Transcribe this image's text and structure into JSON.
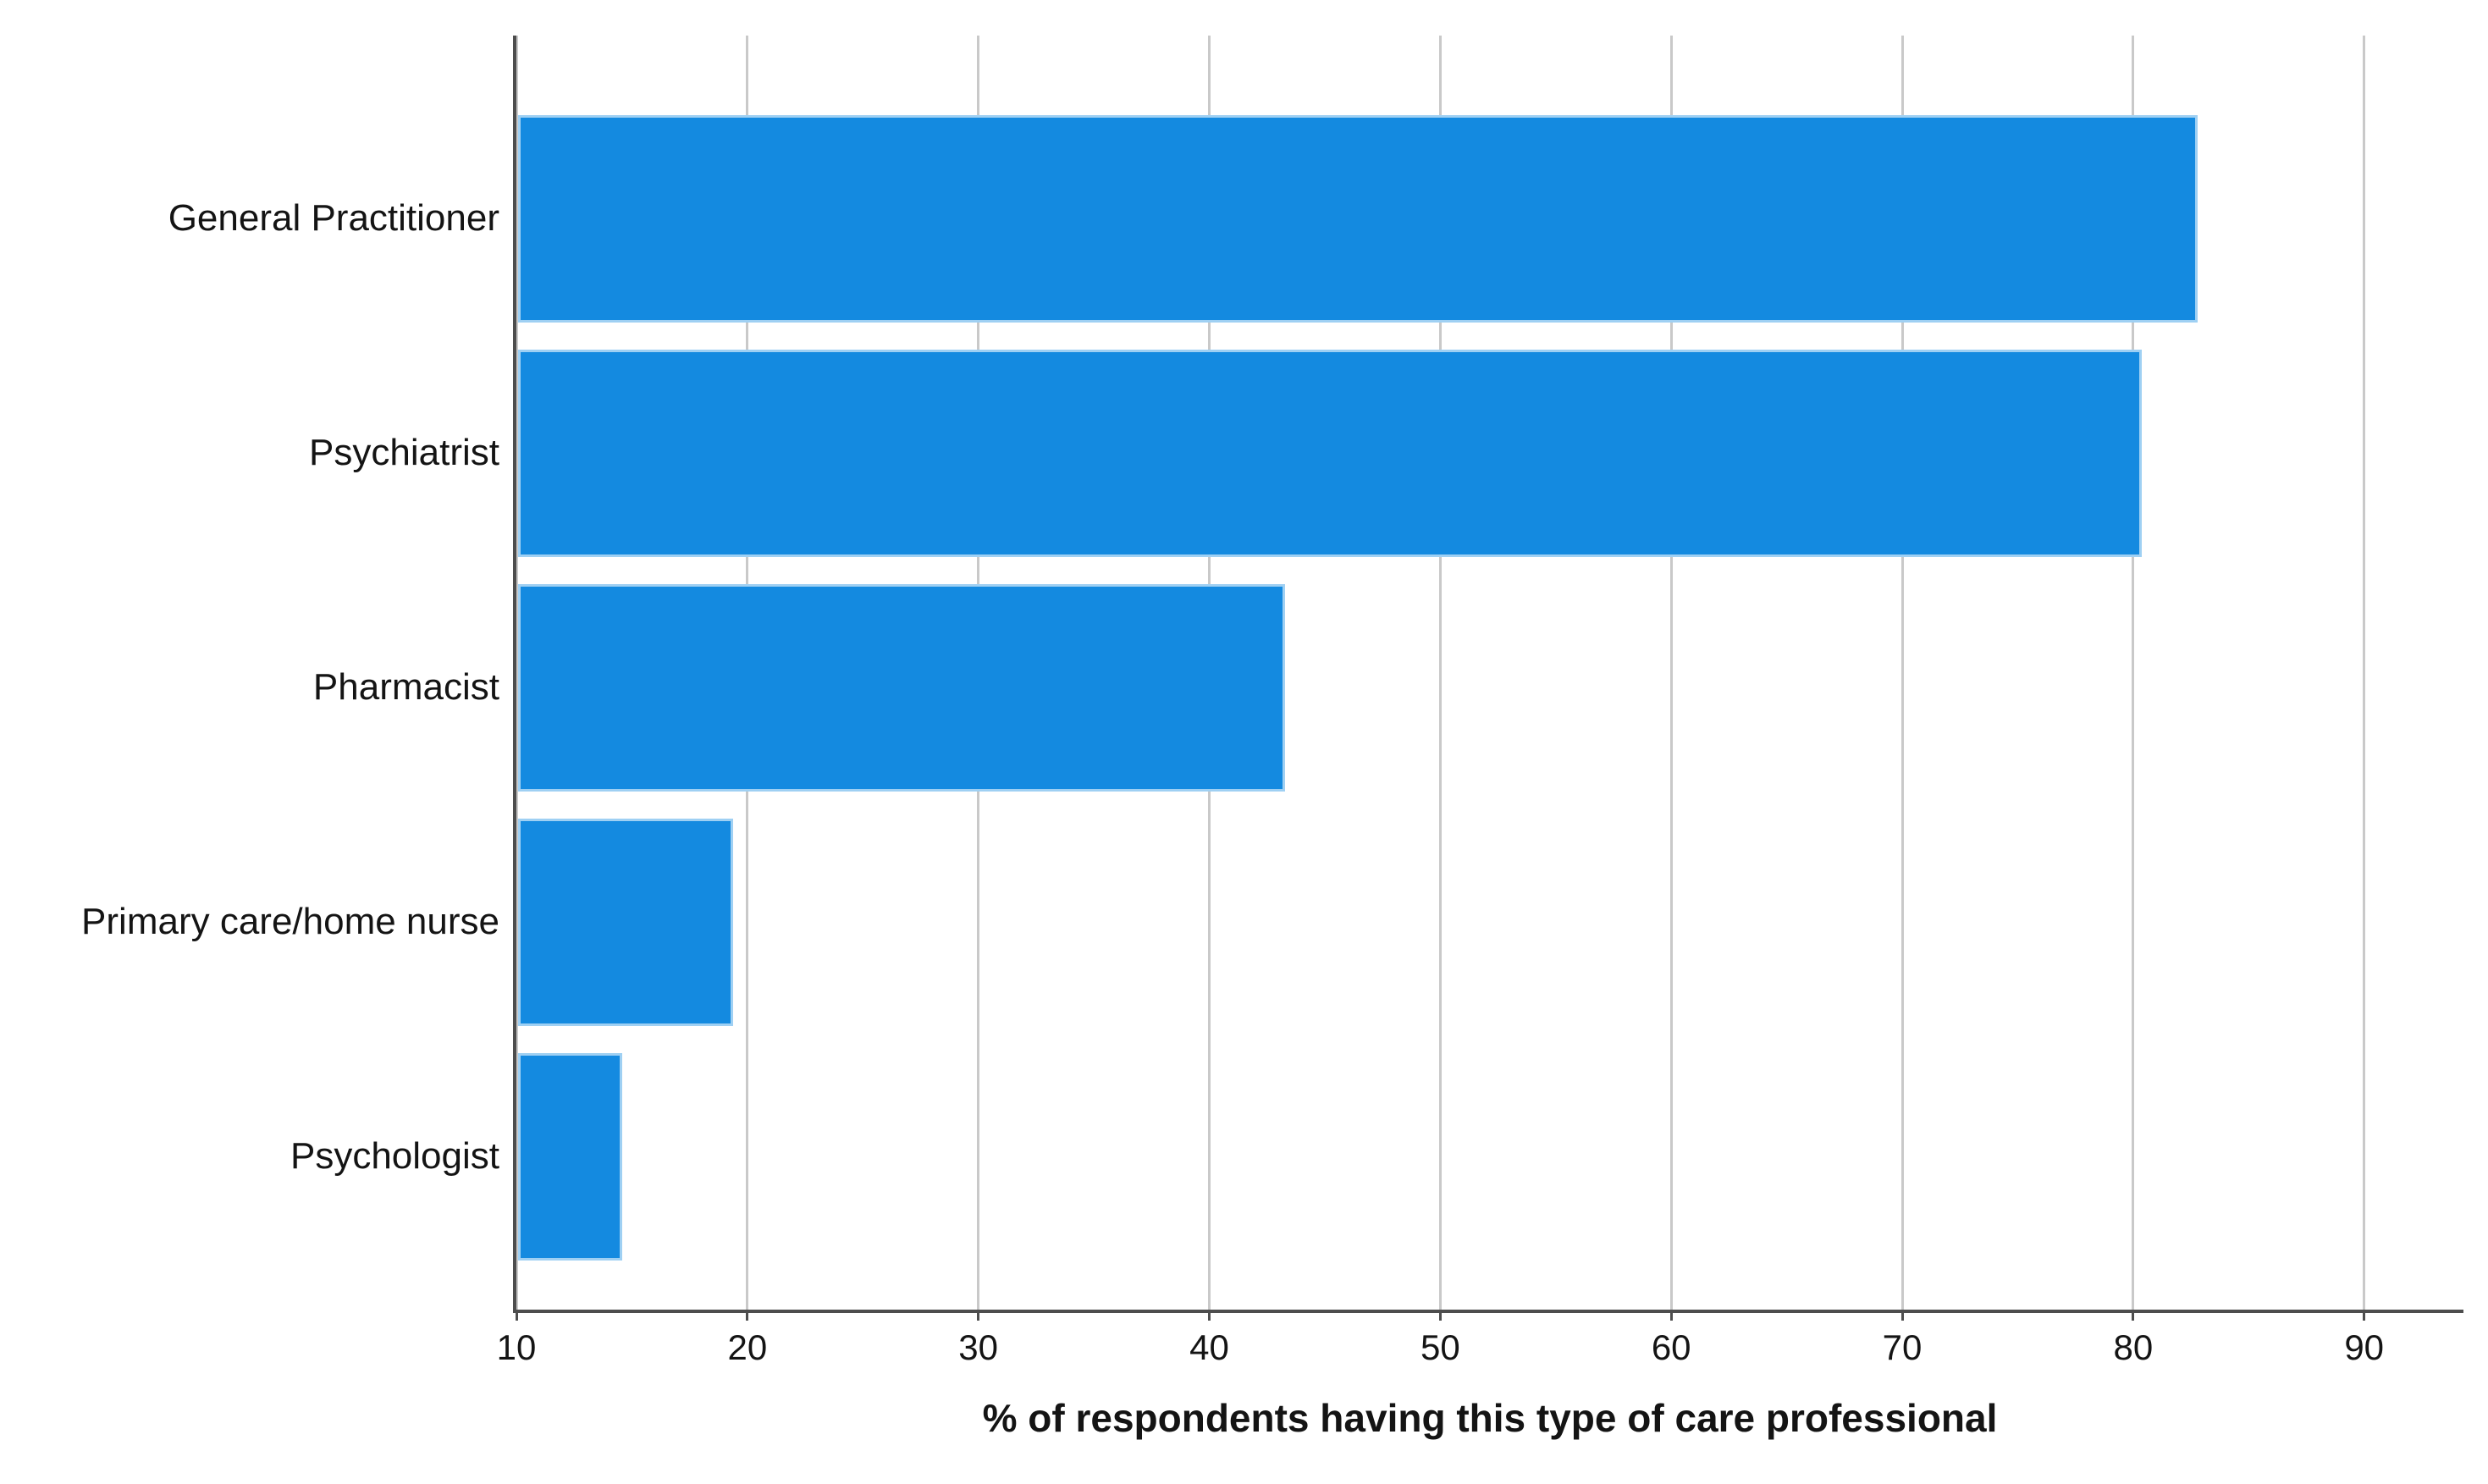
{
  "chart_data": {
    "type": "bar",
    "orientation": "horizontal",
    "title": "",
    "categories": [
      "General Practitioner",
      "Psychiatrist",
      "Pharmacist",
      "Primary care/home nurse",
      "Psychologist"
    ],
    "values": [
      82.7,
      80.3,
      43.2,
      19.3,
      14.5
    ],
    "xlabel": "% of respondents having this type of care professional",
    "ylabel": "",
    "x_ticks": [
      10,
      20,
      30,
      40,
      50,
      60,
      70,
      80,
      90
    ],
    "xlim": [
      10,
      94.3
    ],
    "grid": "vertical-gridlines-on",
    "legend": "none",
    "colors": {
      "bar_fill": "#148ae0",
      "bar_edge": "#9fd0f3",
      "gridline": "#c9c9c9",
      "axis_line": "#4d4d4d",
      "text": "#141414",
      "background": "#ffffff"
    }
  }
}
